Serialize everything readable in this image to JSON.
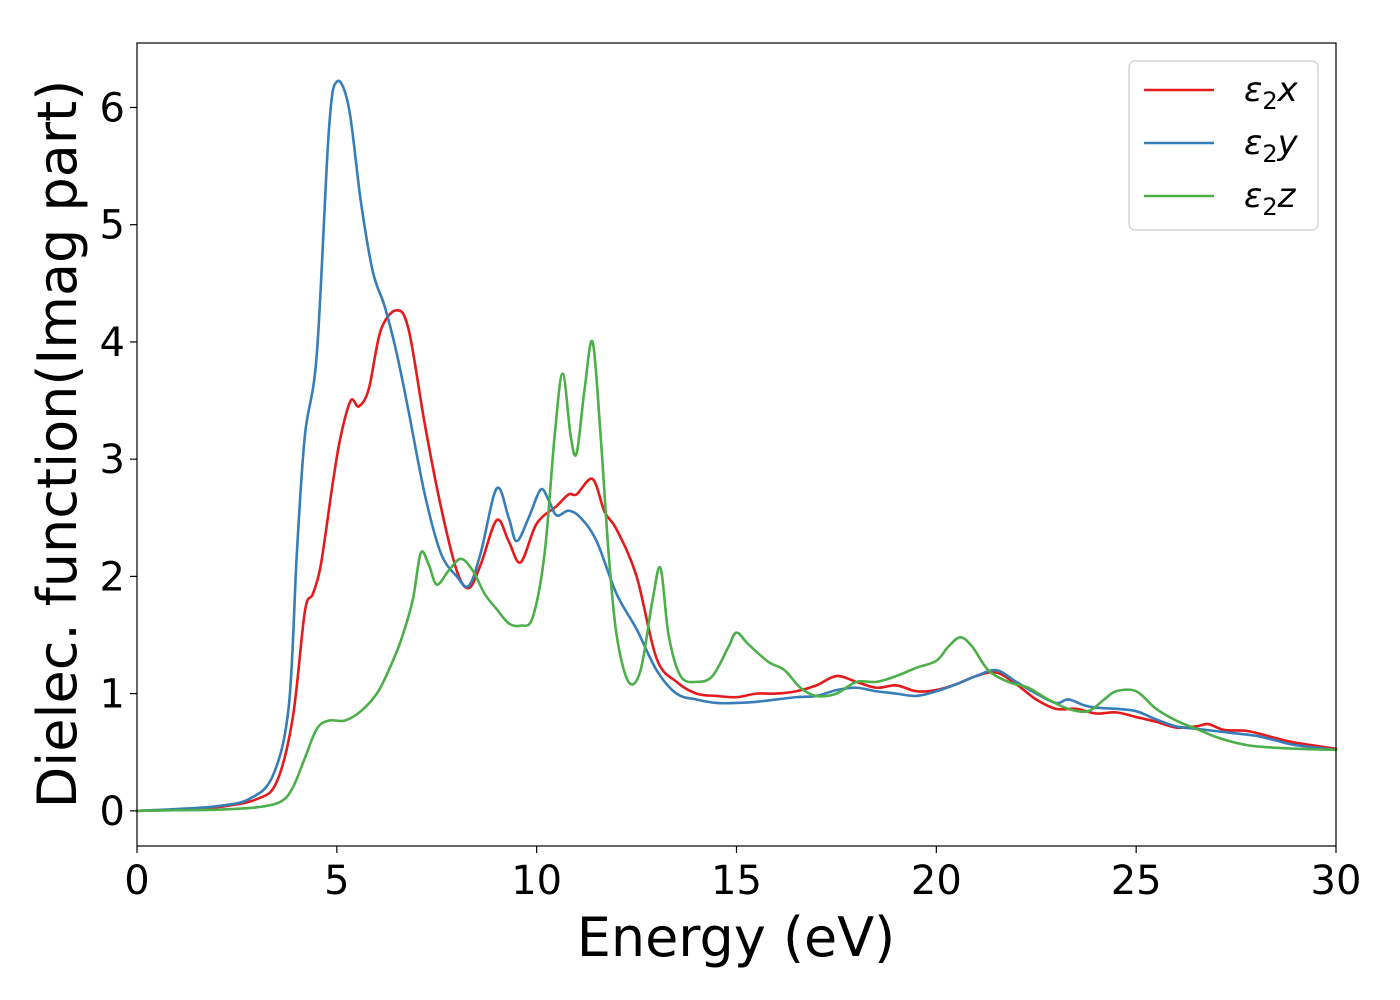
{
  "chart_data": {
    "type": "line",
    "xlabel": "Energy (eV)",
    "ylabel": "Dielec. function(Imag part)",
    "xlim": [
      0,
      30
    ],
    "ylim": [
      -0.3,
      6.55
    ],
    "x_ticks": [
      0,
      5,
      10,
      15,
      20,
      25,
      30
    ],
    "y_ticks": [
      0,
      1,
      2,
      3,
      4,
      5,
      6
    ],
    "grid": false,
    "legend_position": "top-right",
    "series": [
      {
        "name": "ε2x",
        "legend_base": "ε",
        "legend_sub": "2",
        "legend_suffix": "x",
        "color": "#e41a1c",
        "points": [
          [
            0,
            0
          ],
          [
            1,
            0.01
          ],
          [
            2,
            0.03
          ],
          [
            3,
            0.1
          ],
          [
            3.5,
            0.25
          ],
          [
            3.9,
            0.8
          ],
          [
            4.2,
            1.7
          ],
          [
            4.4,
            1.85
          ],
          [
            4.6,
            2.1
          ],
          [
            4.9,
            2.8
          ],
          [
            5.1,
            3.2
          ],
          [
            5.35,
            3.5
          ],
          [
            5.55,
            3.45
          ],
          [
            5.8,
            3.6
          ],
          [
            6.1,
            4.1
          ],
          [
            6.5,
            4.27
          ],
          [
            6.8,
            4.1
          ],
          [
            7.2,
            3.3
          ],
          [
            7.6,
            2.6
          ],
          [
            8.0,
            2.05
          ],
          [
            8.3,
            1.9
          ],
          [
            8.6,
            2.1
          ],
          [
            9.0,
            2.48
          ],
          [
            9.3,
            2.3
          ],
          [
            9.6,
            2.12
          ],
          [
            10.0,
            2.45
          ],
          [
            10.5,
            2.6
          ],
          [
            10.8,
            2.7
          ],
          [
            11.0,
            2.7
          ],
          [
            11.4,
            2.83
          ],
          [
            11.7,
            2.55
          ],
          [
            12.0,
            2.4
          ],
          [
            12.5,
            2.0
          ],
          [
            13.0,
            1.3
          ],
          [
            13.5,
            1.1
          ],
          [
            14.0,
            1.0
          ],
          [
            14.5,
            0.98
          ],
          [
            15.0,
            0.97
          ],
          [
            15.5,
            1.0
          ],
          [
            16.0,
            1.0
          ],
          [
            16.5,
            1.02
          ],
          [
            17.0,
            1.07
          ],
          [
            17.5,
            1.15
          ],
          [
            18.0,
            1.1
          ],
          [
            18.5,
            1.05
          ],
          [
            19.0,
            1.07
          ],
          [
            19.5,
            1.02
          ],
          [
            20.0,
            1.03
          ],
          [
            20.5,
            1.08
          ],
          [
            21.0,
            1.15
          ],
          [
            21.5,
            1.18
          ],
          [
            22.0,
            1.08
          ],
          [
            22.5,
            0.95
          ],
          [
            23.0,
            0.87
          ],
          [
            23.5,
            0.87
          ],
          [
            24.0,
            0.83
          ],
          [
            24.5,
            0.84
          ],
          [
            25.0,
            0.8
          ],
          [
            25.5,
            0.76
          ],
          [
            26.0,
            0.71
          ],
          [
            26.5,
            0.72
          ],
          [
            26.8,
            0.74
          ],
          [
            27.2,
            0.69
          ],
          [
            27.8,
            0.68
          ],
          [
            28.5,
            0.62
          ],
          [
            29.0,
            0.58
          ],
          [
            30.0,
            0.53
          ]
        ]
      },
      {
        "name": "ε2y",
        "legend_base": "ε",
        "legend_sub": "2",
        "legend_suffix": "y",
        "color": "#377eb8",
        "points": [
          [
            0,
            0
          ],
          [
            1,
            0.015
          ],
          [
            2,
            0.04
          ],
          [
            2.8,
            0.1
          ],
          [
            3.4,
            0.3
          ],
          [
            3.8,
            0.9
          ],
          [
            4.0,
            2.2
          ],
          [
            4.2,
            3.2
          ],
          [
            4.5,
            3.9
          ],
          [
            4.8,
            5.8
          ],
          [
            5.0,
            6.22
          ],
          [
            5.3,
            6.0
          ],
          [
            5.6,
            5.2
          ],
          [
            5.9,
            4.6
          ],
          [
            6.2,
            4.3
          ],
          [
            6.5,
            3.9
          ],
          [
            6.8,
            3.4
          ],
          [
            7.2,
            2.7
          ],
          [
            7.6,
            2.2
          ],
          [
            8.0,
            2.0
          ],
          [
            8.3,
            1.92
          ],
          [
            8.6,
            2.2
          ],
          [
            9.0,
            2.75
          ],
          [
            9.3,
            2.5
          ],
          [
            9.5,
            2.3
          ],
          [
            9.8,
            2.5
          ],
          [
            10.1,
            2.74
          ],
          [
            10.3,
            2.65
          ],
          [
            10.5,
            2.52
          ],
          [
            10.8,
            2.56
          ],
          [
            11.1,
            2.5
          ],
          [
            11.5,
            2.3
          ],
          [
            12.0,
            1.85
          ],
          [
            12.5,
            1.55
          ],
          [
            13.0,
            1.2
          ],
          [
            13.5,
            1.0
          ],
          [
            14.0,
            0.95
          ],
          [
            14.5,
            0.92
          ],
          [
            15.0,
            0.92
          ],
          [
            15.5,
            0.93
          ],
          [
            16.0,
            0.95
          ],
          [
            16.5,
            0.97
          ],
          [
            17.0,
            0.98
          ],
          [
            17.5,
            1.03
          ],
          [
            18.0,
            1.05
          ],
          [
            18.5,
            1.02
          ],
          [
            19.0,
            1.0
          ],
          [
            19.5,
            0.98
          ],
          [
            20.0,
            1.02
          ],
          [
            20.5,
            1.08
          ],
          [
            21.0,
            1.15
          ],
          [
            21.5,
            1.2
          ],
          [
            22.0,
            1.1
          ],
          [
            22.5,
            1.0
          ],
          [
            23.0,
            0.92
          ],
          [
            23.3,
            0.95
          ],
          [
            23.7,
            0.9
          ],
          [
            24.0,
            0.88
          ],
          [
            24.5,
            0.87
          ],
          [
            25.0,
            0.85
          ],
          [
            25.5,
            0.78
          ],
          [
            26.0,
            0.72
          ],
          [
            26.5,
            0.7
          ],
          [
            27.0,
            0.68
          ],
          [
            27.5,
            0.66
          ],
          [
            28.0,
            0.64
          ],
          [
            28.5,
            0.6
          ],
          [
            29.0,
            0.56
          ],
          [
            30.0,
            0.52
          ]
        ]
      },
      {
        "name": "ε2z",
        "legend_base": "ε",
        "legend_sub": "2",
        "legend_suffix": "z",
        "color": "#4daf4a",
        "points": [
          [
            0,
            0
          ],
          [
            1,
            0.005
          ],
          [
            2,
            0.01
          ],
          [
            3,
            0.03
          ],
          [
            3.6,
            0.08
          ],
          [
            3.9,
            0.2
          ],
          [
            4.2,
            0.45
          ],
          [
            4.5,
            0.7
          ],
          [
            4.8,
            0.77
          ],
          [
            5.2,
            0.77
          ],
          [
            5.6,
            0.85
          ],
          [
            6.0,
            1.0
          ],
          [
            6.3,
            1.2
          ],
          [
            6.6,
            1.45
          ],
          [
            6.9,
            1.8
          ],
          [
            7.1,
            2.2
          ],
          [
            7.3,
            2.1
          ],
          [
            7.5,
            1.93
          ],
          [
            7.8,
            2.05
          ],
          [
            8.1,
            2.15
          ],
          [
            8.4,
            2.05
          ],
          [
            8.7,
            1.85
          ],
          [
            9.0,
            1.72
          ],
          [
            9.3,
            1.6
          ],
          [
            9.6,
            1.58
          ],
          [
            9.9,
            1.65
          ],
          [
            10.2,
            2.2
          ],
          [
            10.45,
            3.2
          ],
          [
            10.65,
            3.73
          ],
          [
            10.85,
            3.2
          ],
          [
            11.0,
            3.05
          ],
          [
            11.2,
            3.6
          ],
          [
            11.4,
            4.0
          ],
          [
            11.6,
            3.2
          ],
          [
            11.8,
            2.2
          ],
          [
            12.0,
            1.5
          ],
          [
            12.3,
            1.1
          ],
          [
            12.6,
            1.2
          ],
          [
            12.9,
            1.8
          ],
          [
            13.1,
            2.07
          ],
          [
            13.3,
            1.5
          ],
          [
            13.6,
            1.15
          ],
          [
            14.0,
            1.1
          ],
          [
            14.4,
            1.15
          ],
          [
            14.8,
            1.4
          ],
          [
            15.0,
            1.52
          ],
          [
            15.3,
            1.42
          ],
          [
            15.8,
            1.27
          ],
          [
            16.2,
            1.2
          ],
          [
            16.6,
            1.05
          ],
          [
            17.0,
            0.98
          ],
          [
            17.5,
            1.0
          ],
          [
            18.0,
            1.1
          ],
          [
            18.5,
            1.1
          ],
          [
            19.0,
            1.15
          ],
          [
            19.5,
            1.22
          ],
          [
            20.0,
            1.28
          ],
          [
            20.3,
            1.4
          ],
          [
            20.6,
            1.48
          ],
          [
            20.9,
            1.4
          ],
          [
            21.3,
            1.2
          ],
          [
            21.8,
            1.1
          ],
          [
            22.3,
            1.05
          ],
          [
            22.8,
            0.95
          ],
          [
            23.3,
            0.87
          ],
          [
            23.8,
            0.85
          ],
          [
            24.2,
            0.95
          ],
          [
            24.5,
            1.02
          ],
          [
            25.0,
            1.02
          ],
          [
            25.5,
            0.87
          ],
          [
            26.0,
            0.77
          ],
          [
            26.5,
            0.7
          ],
          [
            27.0,
            0.63
          ],
          [
            27.5,
            0.58
          ],
          [
            28.0,
            0.55
          ],
          [
            29.0,
            0.53
          ],
          [
            30.0,
            0.52
          ]
        ]
      }
    ]
  }
}
